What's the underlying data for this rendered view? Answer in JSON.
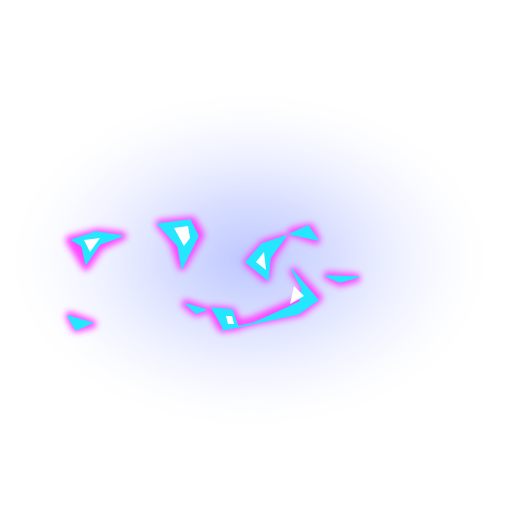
{
  "scene": {
    "background_color": "#ffffff",
    "glow_color": "#b8c4ff",
    "outline_color": "#ff3cff",
    "fill_color": "#25e6ff",
    "highlight_color": "#ffffff"
  },
  "effect": {
    "shard_count": 11
  }
}
